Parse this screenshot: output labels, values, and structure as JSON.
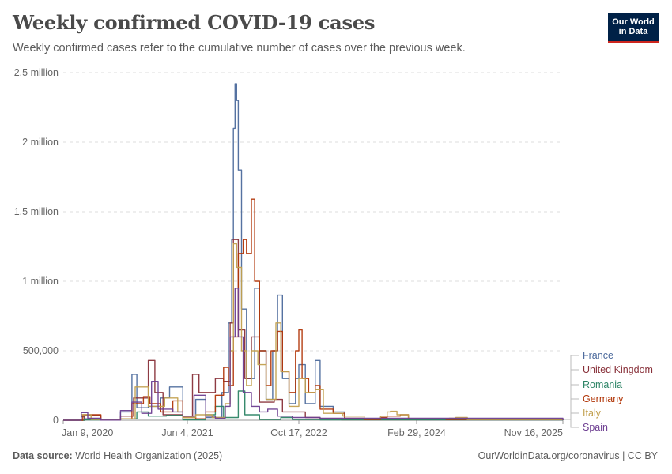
{
  "header": {
    "title": "Weekly confirmed COVID-19 cases",
    "subtitle": "Weekly confirmed cases refer to the cumulative number of cases over the previous week.",
    "logo_line1": "Our World",
    "logo_line2": "in Data"
  },
  "footer": {
    "source_label": "Data source:",
    "source_text": "World Health Organization (2025)",
    "link_text": "OurWorldinData.org/coronavirus | CC BY"
  },
  "chart_data": {
    "type": "line",
    "title": "Weekly confirmed COVID-19 cases",
    "subtitle": "Weekly confirmed cases refer to the cumulative number of cases over the previous week.",
    "x_axis": {
      "ticks": [
        "Jan 9, 2020",
        "Jun 4, 2021",
        "Oct 17, 2022",
        "Feb 29, 2024",
        "Nov 16, 2025"
      ],
      "range": [
        "2020-01-09",
        "2025-11-16"
      ]
    },
    "y_axis": {
      "ticks": [
        0,
        500000,
        1000000,
        1500000,
        2000000,
        2500000
      ],
      "tick_labels": [
        "0",
        "500,000",
        "1 million",
        "1.5 million",
        "2 million",
        "2.5 million"
      ],
      "ylim": [
        0,
        2500000
      ]
    },
    "grid": "horizontal dashed",
    "legend": "right (line-end labels)",
    "series": [
      {
        "name": "France",
        "color": "#4c6a9c",
        "points": [
          [
            "2020-01-09",
            0
          ],
          [
            "2020-03-26",
            25000
          ],
          [
            "2020-04-09",
            10000
          ],
          [
            "2020-06-18",
            1000
          ],
          [
            "2020-09-10",
            60000
          ],
          [
            "2020-10-29",
            330000
          ],
          [
            "2020-11-19",
            90000
          ],
          [
            "2021-01-07",
            100000
          ],
          [
            "2021-03-01",
            160000
          ],
          [
            "2021-04-08",
            240000
          ],
          [
            "2021-06-04",
            30000
          ],
          [
            "2021-07-29",
            150000
          ],
          [
            "2021-09-10",
            20000
          ],
          [
            "2021-11-18",
            200000
          ],
          [
            "2021-12-16",
            700000
          ],
          [
            "2021-12-30",
            1300000
          ],
          [
            "2022-01-06",
            2100000
          ],
          [
            "2022-01-13",
            2420000
          ],
          [
            "2022-01-20",
            2300000
          ],
          [
            "2022-01-27",
            1800000
          ],
          [
            "2022-02-10",
            800000
          ],
          [
            "2022-03-03",
            300000
          ],
          [
            "2022-04-07",
            950000
          ],
          [
            "2022-04-28",
            500000
          ],
          [
            "2022-05-26",
            150000
          ],
          [
            "2022-06-23",
            500000
          ],
          [
            "2022-07-14",
            900000
          ],
          [
            "2022-08-04",
            300000
          ],
          [
            "2022-09-01",
            120000
          ],
          [
            "2022-09-29",
            300000
          ],
          [
            "2022-10-13",
            400000
          ],
          [
            "2022-11-10",
            120000
          ],
          [
            "2022-12-22",
            430000
          ],
          [
            "2023-01-12",
            100000
          ],
          [
            "2023-03-09",
            60000
          ],
          [
            "2023-04-27",
            10000
          ],
          [
            "2023-07-20",
            5000
          ],
          [
            "2024-03-01",
            3000
          ],
          [
            "2025-11-16",
            2000
          ]
        ]
      },
      {
        "name": "United Kingdom",
        "color": "#883039",
        "points": [
          [
            "2020-01-09",
            0
          ],
          [
            "2020-04-09",
            35000
          ],
          [
            "2020-06-18",
            5000
          ],
          [
            "2020-09-10",
            30000
          ],
          [
            "2020-11-05",
            160000
          ],
          [
            "2021-01-07",
            430000
          ],
          [
            "2021-02-04",
            200000
          ],
          [
            "2021-03-11",
            40000
          ],
          [
            "2021-06-04",
            30000
          ],
          [
            "2021-07-15",
            330000
          ],
          [
            "2021-08-12",
            200000
          ],
          [
            "2021-10-21",
            300000
          ],
          [
            "2021-11-25",
            280000
          ],
          [
            "2021-12-23",
            700000
          ],
          [
            "2022-01-06",
            1300000
          ],
          [
            "2022-01-27",
            650000
          ],
          [
            "2022-02-24",
            300000
          ],
          [
            "2022-03-24",
            600000
          ],
          [
            "2022-04-28",
            130000
          ],
          [
            "2022-06-30",
            150000
          ],
          [
            "2022-08-04",
            60000
          ],
          [
            "2022-10-06",
            60000
          ],
          [
            "2022-11-10",
            20000
          ],
          [
            "2023-01-12",
            10000
          ],
          [
            "2023-04-13",
            3000
          ],
          [
            "2025-11-16",
            0
          ]
        ]
      },
      {
        "name": "Romania",
        "color": "#2c8465",
        "points": [
          [
            "2020-01-09",
            0
          ],
          [
            "2020-04-09",
            2000
          ],
          [
            "2020-09-10",
            10000
          ],
          [
            "2020-11-19",
            60000
          ],
          [
            "2021-01-07",
            30000
          ],
          [
            "2021-03-25",
            35000
          ],
          [
            "2021-06-04",
            2000
          ],
          [
            "2021-09-10",
            40000
          ],
          [
            "2021-10-21",
            100000
          ],
          [
            "2021-11-25",
            20000
          ],
          [
            "2022-01-27",
            210000
          ],
          [
            "2022-02-24",
            40000
          ],
          [
            "2022-04-28",
            5000
          ],
          [
            "2022-07-28",
            20000
          ],
          [
            "2022-09-15",
            5000
          ],
          [
            "2023-01-12",
            3000
          ],
          [
            "2025-11-16",
            0
          ]
        ]
      },
      {
        "name": "Germany",
        "color": "#b13507",
        "points": [
          [
            "2020-01-09",
            0
          ],
          [
            "2020-04-02",
            40000
          ],
          [
            "2020-06-18",
            2000
          ],
          [
            "2020-09-10",
            10000
          ],
          [
            "2020-10-29",
            120000
          ],
          [
            "2020-12-17",
            170000
          ],
          [
            "2021-01-14",
            120000
          ],
          [
            "2021-03-01",
            60000
          ],
          [
            "2021-04-22",
            140000
          ],
          [
            "2021-06-04",
            20000
          ],
          [
            "2021-07-29",
            10000
          ],
          [
            "2021-09-10",
            60000
          ],
          [
            "2021-10-21",
            180000
          ],
          [
            "2021-11-25",
            380000
          ],
          [
            "2021-12-16",
            250000
          ],
          [
            "2022-01-06",
            600000
          ],
          [
            "2022-01-27",
            1200000
          ],
          [
            "2022-02-17",
            1300000
          ],
          [
            "2022-03-03",
            1200000
          ],
          [
            "2022-03-24",
            1590000
          ],
          [
            "2022-04-07",
            1000000
          ],
          [
            "2022-04-28",
            500000
          ],
          [
            "2022-05-26",
            250000
          ],
          [
            "2022-06-16",
            500000
          ],
          [
            "2022-07-14",
            640000
          ],
          [
            "2022-08-04",
            350000
          ],
          [
            "2022-09-01",
            200000
          ],
          [
            "2022-09-29",
            500000
          ],
          [
            "2022-10-13",
            650000
          ],
          [
            "2022-10-27",
            300000
          ],
          [
            "2022-11-24",
            200000
          ],
          [
            "2022-12-22",
            250000
          ],
          [
            "2023-01-12",
            80000
          ],
          [
            "2023-03-09",
            50000
          ],
          [
            "2023-04-27",
            15000
          ],
          [
            "2023-07-20",
            5000
          ],
          [
            "2023-09-28",
            20000
          ],
          [
            "2023-10-26",
            30000
          ],
          [
            "2023-12-21",
            40000
          ],
          [
            "2024-01-25",
            10000
          ],
          [
            "2024-07-04",
            5000
          ],
          [
            "2025-11-16",
            2000
          ]
        ]
      },
      {
        "name": "Italy",
        "color": "#c2a04e",
        "points": [
          [
            "2020-01-09",
            0
          ],
          [
            "2020-03-26",
            40000
          ],
          [
            "2020-05-07",
            5000
          ],
          [
            "2020-06-25",
            2000
          ],
          [
            "2020-09-10",
            10000
          ],
          [
            "2020-11-12",
            240000
          ],
          [
            "2021-01-07",
            100000
          ],
          [
            "2021-03-18",
            160000
          ],
          [
            "2021-05-13",
            60000
          ],
          [
            "2021-06-04",
            20000
          ],
          [
            "2021-07-29",
            40000
          ],
          [
            "2021-10-07",
            20000
          ],
          [
            "2021-12-02",
            120000
          ],
          [
            "2021-12-23",
            500000
          ],
          [
            "2022-01-06",
            1270000
          ],
          [
            "2022-01-20",
            1100000
          ],
          [
            "2022-02-10",
            500000
          ],
          [
            "2022-03-03",
            250000
          ],
          [
            "2022-03-24",
            500000
          ],
          [
            "2022-04-21",
            400000
          ],
          [
            "2022-05-26",
            150000
          ],
          [
            "2022-07-07",
            700000
          ],
          [
            "2022-07-28",
            350000
          ],
          [
            "2022-09-01",
            100000
          ],
          [
            "2022-10-13",
            300000
          ],
          [
            "2022-11-10",
            200000
          ],
          [
            "2022-12-22",
            220000
          ],
          [
            "2023-01-26",
            50000
          ],
          [
            "2023-04-20",
            30000
          ],
          [
            "2023-07-20",
            10000
          ],
          [
            "2023-09-28",
            30000
          ],
          [
            "2023-10-26",
            60000
          ],
          [
            "2023-11-09",
            65000
          ],
          [
            "2023-12-07",
            40000
          ],
          [
            "2024-01-25",
            10000
          ],
          [
            "2024-07-18",
            15000
          ],
          [
            "2024-08-15",
            20000
          ],
          [
            "2024-10-03",
            5000
          ],
          [
            "2025-11-16",
            1000
          ]
        ]
      },
      {
        "name": "Spain",
        "color": "#6d3e91",
        "points": [
          [
            "2020-01-09",
            0
          ],
          [
            "2020-03-26",
            55000
          ],
          [
            "2020-04-23",
            15000
          ],
          [
            "2020-06-18",
            1000
          ],
          [
            "2020-09-10",
            70000
          ],
          [
            "2020-10-29",
            130000
          ],
          [
            "2020-12-10",
            50000
          ],
          [
            "2021-01-21",
            280000
          ],
          [
            "2021-02-18",
            80000
          ],
          [
            "2021-04-22",
            60000
          ],
          [
            "2021-06-04",
            30000
          ],
          [
            "2021-07-22",
            180000
          ],
          [
            "2021-09-10",
            30000
          ],
          [
            "2021-10-21",
            15000
          ],
          [
            "2021-12-02",
            100000
          ],
          [
            "2021-12-23",
            600000
          ],
          [
            "2022-01-13",
            950000
          ],
          [
            "2022-01-27",
            600000
          ],
          [
            "2022-02-17",
            200000
          ],
          [
            "2022-03-24",
            100000
          ],
          [
            "2022-04-28",
            60000
          ],
          [
            "2022-06-02",
            80000
          ],
          [
            "2022-07-14",
            30000
          ],
          [
            "2022-09-15",
            20000
          ],
          [
            "2023-01-12",
            15000
          ],
          [
            "2025-11-16",
            0
          ]
        ]
      }
    ]
  }
}
